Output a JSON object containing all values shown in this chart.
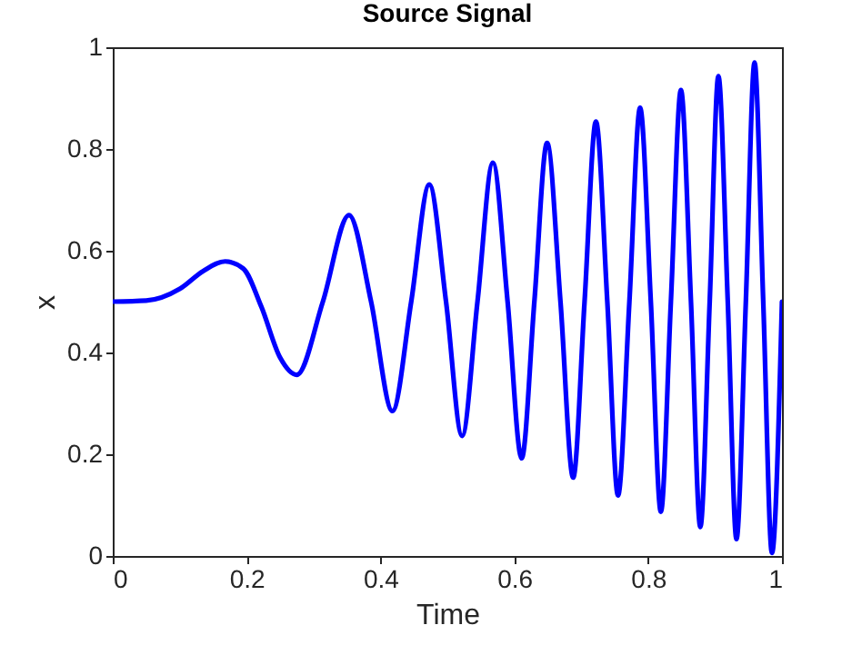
{
  "chart_data": {
    "type": "line",
    "title": "Source Signal",
    "xlabel": "Time",
    "ylabel": "x",
    "x": [
      0,
      0.05,
      0.1,
      0.135,
      0.168,
      0.195,
      0.222,
      0.25,
      0.275,
      0.314,
      0.353,
      0.386,
      0.418,
      0.446,
      0.473,
      0.498,
      0.522,
      0.545,
      0.568,
      0.59,
      0.611,
      0.63,
      0.649,
      0.669,
      0.688,
      0.705,
      0.722,
      0.739,
      0.755,
      0.772,
      0.788,
      0.804,
      0.819,
      0.834,
      0.849,
      0.864,
      0.878,
      0.892,
      0.905,
      0.919,
      0.932,
      0.946,
      0.959,
      0.972,
      0.985,
      1
    ],
    "series": [
      {
        "color": "#0000ff",
        "values": [
          0.5,
          0.502,
          0.525,
          0.56,
          0.579,
          0.565,
          0.49,
          0.39,
          0.356,
          0.5,
          0.67,
          0.5,
          0.285,
          0.5,
          0.73,
          0.5,
          0.236,
          0.5,
          0.773,
          0.5,
          0.192,
          0.5,
          0.812,
          0.5,
          0.154,
          0.5,
          0.854,
          0.5,
          0.119,
          0.5,
          0.881,
          0.5,
          0.087,
          0.5,
          0.916,
          0.5,
          0.057,
          0.5,
          0.943,
          0.5,
          0.033,
          0.5,
          0.97,
          0.5,
          0.006,
          0.5
        ]
      }
    ],
    "xlim": [
      0,
      1
    ],
    "ylim": [
      0,
      1
    ],
    "xticks": [
      0,
      0.2,
      0.4,
      0.6,
      0.8,
      1
    ],
    "yticks": [
      0,
      0.2,
      0.4,
      0.6,
      0.8,
      1
    ],
    "grid": false,
    "line_style": "solid"
  }
}
